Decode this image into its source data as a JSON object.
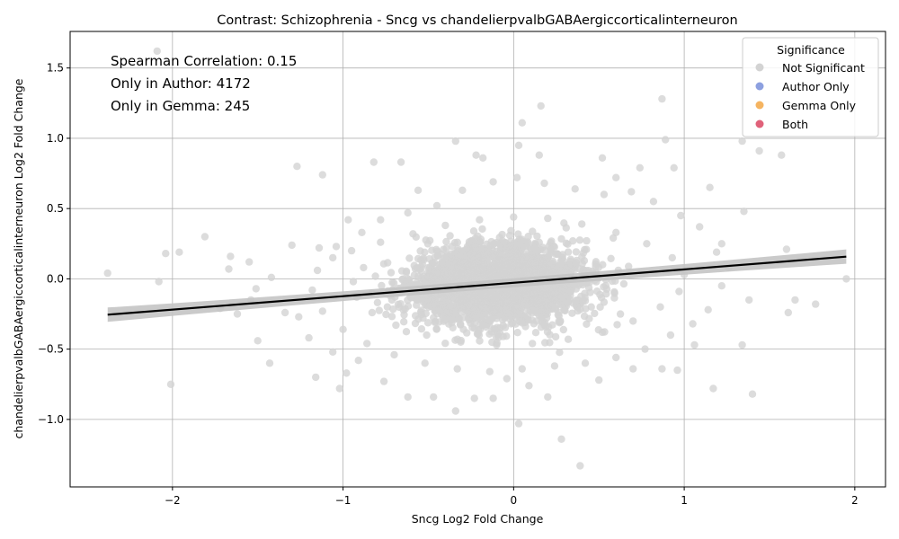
{
  "chart_data": {
    "type": "scatter",
    "title": "Contrast: Schizophrenia - Sncg vs chandelierpvalbGABAergiccorticalinterneuron",
    "xlabel": "Sncg Log2 Fold Change",
    "ylabel": "chandelierpvalbGABAergiccorticalinterneuron Log2 Fold Change",
    "xlim": [
      -2.6,
      2.18
    ],
    "ylim": [
      -1.48,
      1.76
    ],
    "xticks": [
      -2,
      -1,
      0,
      1,
      2
    ],
    "xtick_labels": [
      "−2",
      "−1",
      "0",
      "1",
      "2"
    ],
    "yticks": [
      -1.0,
      -0.5,
      0.0,
      0.5,
      1.0,
      1.5
    ],
    "ytick_labels": [
      "−1.0",
      "−0.5",
      "0.0",
      "0.5",
      "1.0",
      "1.5"
    ],
    "grid": true,
    "annotations": [
      "Spearman Correlation: 0.15",
      "Only in Author: 4172",
      "Only in Gemma: 245"
    ],
    "legend": {
      "title": "Significance",
      "position": "top-right",
      "entries": [
        {
          "label": "Not Significant",
          "color": "#d3d3d3"
        },
        {
          "label": "Author Only",
          "color": "#8da0e0"
        },
        {
          "label": "Gemma Only",
          "color": "#f5b461"
        },
        {
          "label": "Both",
          "color": "#e0627a"
        }
      ]
    },
    "regression_line": {
      "x": [
        -2.38,
        1.95
      ],
      "y": [
        -0.255,
        0.158
      ],
      "color": "#000000"
    },
    "series": [
      {
        "name": "Not Significant",
        "color": "#d3d3d3",
        "points": [
          [
            -2.38,
            0.04
          ],
          [
            -2.09,
            1.62
          ],
          [
            -2.04,
            0.18
          ],
          [
            -2.01,
            -0.75
          ],
          [
            -1.96,
            0.19
          ],
          [
            -2.08,
            -0.02
          ],
          [
            -1.81,
            0.3
          ],
          [
            -1.66,
            0.16
          ],
          [
            -1.67,
            0.07
          ],
          [
            -1.62,
            -0.25
          ],
          [
            -1.55,
            0.12
          ],
          [
            -1.51,
            -0.07
          ],
          [
            -1.5,
            -0.44
          ],
          [
            -1.43,
            -0.6
          ],
          [
            -1.27,
            0.8
          ],
          [
            -1.2,
            -0.42
          ],
          [
            -1.16,
            -0.7
          ],
          [
            -1.12,
            0.74
          ],
          [
            -1.06,
            -0.52
          ],
          [
            -1.02,
            -0.78
          ],
          [
            -0.82,
            0.83
          ],
          [
            -0.66,
            0.83
          ],
          [
            -0.56,
            0.63
          ],
          [
            -0.34,
            0.98
          ],
          [
            -0.22,
            0.88
          ],
          [
            0.03,
            0.95
          ],
          [
            0.05,
            1.11
          ],
          [
            0.16,
            1.23
          ],
          [
            0.15,
            0.88
          ],
          [
            0.87,
            1.28
          ],
          [
            0.89,
            0.99
          ],
          [
            0.94,
            0.79
          ],
          [
            1.34,
            0.98
          ],
          [
            1.44,
            0.91
          ],
          [
            1.57,
            0.88
          ],
          [
            1.15,
            0.65
          ],
          [
            1.35,
            0.48
          ],
          [
            1.22,
            0.25
          ],
          [
            1.6,
            0.21
          ],
          [
            1.65,
            -0.15
          ],
          [
            1.61,
            -0.24
          ],
          [
            1.77,
            -0.18
          ],
          [
            1.95,
            0.0
          ],
          [
            1.38,
            -0.15
          ],
          [
            1.4,
            -0.82
          ],
          [
            1.17,
            -0.78
          ],
          [
            1.34,
            -0.47
          ],
          [
            1.06,
            -0.47
          ],
          [
            0.96,
            -0.65
          ],
          [
            0.87,
            -0.64
          ],
          [
            0.7,
            -0.64
          ],
          [
            0.5,
            -0.72
          ],
          [
            0.39,
            -1.33
          ],
          [
            0.28,
            -1.14
          ],
          [
            0.03,
            -1.03
          ],
          [
            0.2,
            -0.84
          ],
          [
            -0.12,
            -0.85
          ],
          [
            -0.23,
            -0.85
          ],
          [
            -0.34,
            -0.94
          ],
          [
            -0.47,
            -0.84
          ],
          [
            -0.62,
            -0.84
          ],
          [
            -0.76,
            -0.73
          ],
          [
            -0.91,
            -0.58
          ],
          [
            -1.26,
            -0.27
          ],
          [
            -1.34,
            -0.24
          ],
          [
            -1.3,
            0.24
          ],
          [
            -1.14,
            0.22
          ],
          [
            -1.04,
            0.23
          ],
          [
            -0.97,
            0.42
          ],
          [
            -0.89,
            0.33
          ],
          [
            -0.78,
            0.42
          ],
          [
            -0.62,
            0.47
          ],
          [
            -0.45,
            0.52
          ],
          [
            -0.3,
            0.63
          ],
          [
            -0.12,
            0.69
          ],
          [
            0.02,
            0.72
          ],
          [
            0.18,
            0.68
          ],
          [
            0.36,
            0.64
          ],
          [
            0.53,
            0.6
          ],
          [
            0.69,
            0.62
          ],
          [
            0.82,
            0.55
          ],
          [
            0.98,
            0.45
          ],
          [
            1.09,
            0.37
          ],
          [
            1.19,
            0.19
          ],
          [
            1.26,
            0.08
          ],
          [
            1.22,
            -0.05
          ],
          [
            1.14,
            -0.22
          ],
          [
            1.05,
            -0.32
          ],
          [
            0.92,
            -0.4
          ],
          [
            0.77,
            -0.5
          ],
          [
            0.6,
            -0.56
          ],
          [
            0.42,
            -0.6
          ],
          [
            0.24,
            -0.62
          ],
          [
            0.05,
            -0.64
          ],
          [
            -0.14,
            -0.66
          ],
          [
            -0.33,
            -0.64
          ],
          [
            -0.52,
            -0.6
          ],
          [
            -0.7,
            -0.54
          ],
          [
            -0.86,
            -0.46
          ],
          [
            -1.0,
            -0.36
          ],
          [
            -1.12,
            -0.23
          ],
          [
            -1.18,
            -0.08
          ],
          [
            -1.15,
            0.06
          ],
          [
            -1.06,
            0.15
          ],
          [
            -0.95,
            0.2
          ],
          [
            -0.78,
            0.26
          ],
          [
            -0.59,
            0.32
          ],
          [
            -0.4,
            0.38
          ],
          [
            -0.2,
            0.42
          ],
          [
            0.0,
            0.44
          ],
          [
            0.2,
            0.43
          ],
          [
            0.4,
            0.39
          ],
          [
            0.6,
            0.33
          ],
          [
            0.78,
            0.25
          ],
          [
            0.93,
            0.15
          ],
          [
            1.0,
            0.03
          ],
          [
            0.97,
            -0.09
          ],
          [
            0.86,
            -0.2
          ],
          [
            0.7,
            -0.3
          ],
          [
            0.52,
            -0.38
          ],
          [
            0.32,
            -0.43
          ],
          [
            0.11,
            -0.46
          ],
          [
            -0.1,
            -0.47
          ],
          [
            -0.31,
            -0.45
          ],
          [
            -0.51,
            -0.4
          ],
          [
            -0.69,
            -0.33
          ],
          [
            -0.83,
            -0.24
          ],
          [
            -0.92,
            -0.13
          ],
          [
            -0.94,
            -0.02
          ],
          [
            -0.88,
            0.08
          ],
          [
            -1.42,
            0.01
          ],
          [
            -1.54,
            -0.15
          ],
          [
            -1.72,
            -0.21
          ],
          [
            -0.98,
            -0.67
          ],
          [
            0.74,
            0.79
          ],
          [
            0.52,
            0.86
          ],
          [
            -0.18,
            0.86
          ],
          [
            0.09,
            -0.76
          ],
          [
            -0.04,
            -0.71
          ],
          [
            0.6,
            0.72
          ]
        ]
      },
      {
        "name": "Author Only",
        "color": "#8da0e0",
        "points": []
      },
      {
        "name": "Gemma Only",
        "color": "#f5b461",
        "points": []
      },
      {
        "name": "Both",
        "color": "#e0627a",
        "points": []
      }
    ]
  }
}
